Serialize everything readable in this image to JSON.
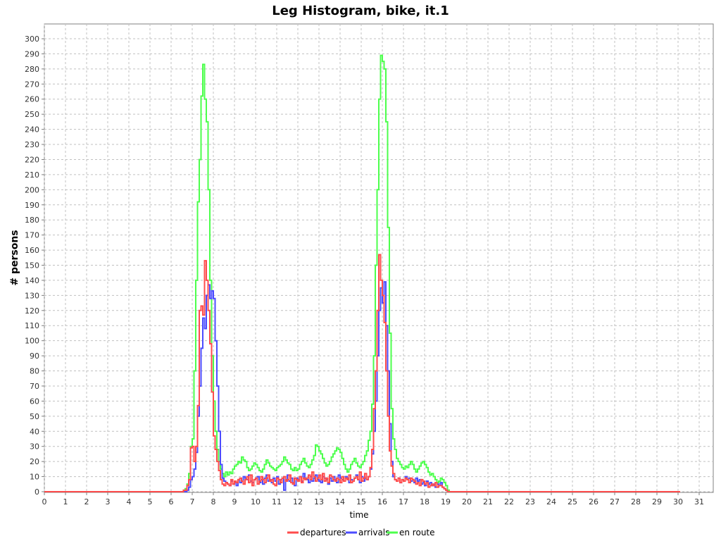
{
  "chart_data": {
    "type": "line",
    "title": "Leg Histogram, bike, it.1",
    "xlabel": "time",
    "ylabel": "# persons",
    "xlim": [
      0,
      31
    ],
    "ylim": [
      0,
      300
    ],
    "x_ticks": [
      "0",
      "1",
      "2",
      "3",
      "4",
      "5",
      "6",
      "7",
      "8",
      "9",
      "10",
      "11",
      "12",
      "13",
      "14",
      "15",
      "16",
      "17",
      "18",
      "19",
      "20",
      "21",
      "22",
      "23",
      "24",
      "25",
      "26",
      "27",
      "28",
      "29",
      "30",
      "31"
    ],
    "y_ticks": [
      "0",
      "10",
      "20",
      "30",
      "40",
      "50",
      "60",
      "70",
      "80",
      "90",
      "100",
      "110",
      "120",
      "130",
      "140",
      "150",
      "160",
      "170",
      "180",
      "190",
      "200",
      "210",
      "220",
      "230",
      "240",
      "250",
      "260",
      "270",
      "280",
      "290",
      "300"
    ],
    "grid": true,
    "legend_position": "bottom-center",
    "step_hours": 0.08333,
    "series": [
      {
        "name": "departures",
        "color": "#ff4c4c",
        "start_hour": 6.5,
        "values": [
          0,
          1,
          1,
          4,
          8,
          29,
          30,
          20,
          30,
          57,
          120,
          123,
          117,
          153,
          140,
          120,
          98,
          66,
          37,
          28,
          20,
          14,
          8,
          5,
          4,
          6,
          5,
          4,
          8,
          5,
          7,
          6,
          8,
          9,
          7,
          5,
          8,
          10,
          6,
          11,
          4,
          8,
          9,
          5,
          7,
          10,
          8,
          6,
          9,
          11,
          7,
          8,
          5,
          4,
          9,
          8,
          6,
          9,
          10,
          7,
          8,
          11,
          6,
          5,
          9,
          8,
          7,
          10,
          6,
          9,
          8,
          9,
          11,
          8,
          13,
          10,
          7,
          9,
          11,
          8,
          12,
          7,
          9,
          6,
          11,
          10,
          8,
          7,
          9,
          8,
          6,
          10,
          7,
          9,
          8,
          11,
          6,
          7,
          9,
          10,
          8,
          13,
          7,
          9,
          12,
          8,
          10,
          16,
          28,
          55,
          80,
          120,
          157,
          140,
          130,
          112,
          80,
          50,
          27,
          17,
          12,
          8,
          7,
          9,
          6,
          8,
          7,
          9,
          8,
          6,
          9,
          8,
          7,
          5,
          6,
          4,
          8,
          7,
          5,
          6,
          3,
          4,
          5,
          4,
          6,
          3,
          4,
          4,
          3,
          2,
          1,
          0
        ],
        "tail_value": 0,
        "tail_end_hour": 30.1
      },
      {
        "name": "arrivals",
        "color": "#4c4cff",
        "start_hour": 6.5,
        "values": [
          0,
          0,
          0,
          1,
          3,
          8,
          10,
          15,
          26,
          50,
          70,
          95,
          115,
          108,
          130,
          137,
          128,
          133,
          128,
          100,
          70,
          40,
          18,
          9,
          7,
          6,
          5,
          4,
          7,
          5,
          6,
          4,
          8,
          6,
          7,
          10,
          9,
          8,
          11,
          7,
          6,
          8,
          9,
          10,
          6,
          8,
          5,
          9,
          11,
          7,
          8,
          6,
          9,
          7,
          10,
          5,
          8,
          9,
          1,
          8,
          11,
          7,
          9,
          6,
          4,
          9,
          8,
          10,
          7,
          12,
          9,
          8,
          6,
          10,
          7,
          9,
          11,
          8,
          7,
          6,
          10,
          9,
          8,
          5,
          9,
          7,
          10,
          8,
          6,
          11,
          9,
          8,
          7,
          10,
          9,
          6,
          8,
          7,
          9,
          11,
          8,
          6,
          10,
          7,
          9,
          8,
          10,
          15,
          25,
          40,
          60,
          90,
          120,
          135,
          125,
          139,
          110,
          80,
          45,
          20,
          10,
          8,
          7,
          9,
          6,
          8,
          7,
          10,
          8,
          9,
          7,
          8,
          6,
          9,
          7,
          8,
          5,
          6,
          4,
          7,
          5,
          6,
          4,
          5,
          3,
          5,
          4,
          6,
          3,
          2,
          1,
          0
        ],
        "tail_value": 0,
        "tail_end_hour": 30.1
      },
      {
        "name": "en route",
        "color": "#4cff4c",
        "start_hour": 6.5,
        "values": [
          0,
          1,
          2,
          5,
          12,
          30,
          35,
          80,
          140,
          192,
          220,
          262,
          283,
          260,
          245,
          200,
          140,
          90,
          60,
          40,
          28,
          20,
          15,
          12,
          10,
          13,
          11,
          13,
          12,
          15,
          17,
          18,
          20,
          19,
          23,
          21,
          20,
          16,
          14,
          15,
          17,
          19,
          18,
          16,
          14,
          13,
          15,
          18,
          21,
          19,
          17,
          16,
          15,
          14,
          16,
          17,
          18,
          20,
          23,
          21,
          19,
          18,
          15,
          14,
          16,
          14,
          15,
          18,
          20,
          22,
          19,
          17,
          16,
          18,
          21,
          24,
          31,
          30,
          27,
          25,
          22,
          19,
          17,
          18,
          20,
          23,
          25,
          27,
          29,
          28,
          26,
          22,
          18,
          15,
          13,
          15,
          18,
          20,
          22,
          19,
          17,
          16,
          18,
          20,
          24,
          27,
          34,
          40,
          58,
          90,
          150,
          200,
          260,
          289,
          285,
          280,
          245,
          175,
          105,
          55,
          35,
          28,
          22,
          20,
          18,
          16,
          15,
          17,
          16,
          18,
          20,
          18,
          15,
          13,
          15,
          17,
          19,
          20,
          18,
          16,
          13,
          11,
          12,
          10,
          8,
          6,
          7,
          9,
          8,
          6,
          4,
          1,
          0
        ],
        "tail_value": 0,
        "tail_end_hour": 30.1
      }
    ]
  }
}
